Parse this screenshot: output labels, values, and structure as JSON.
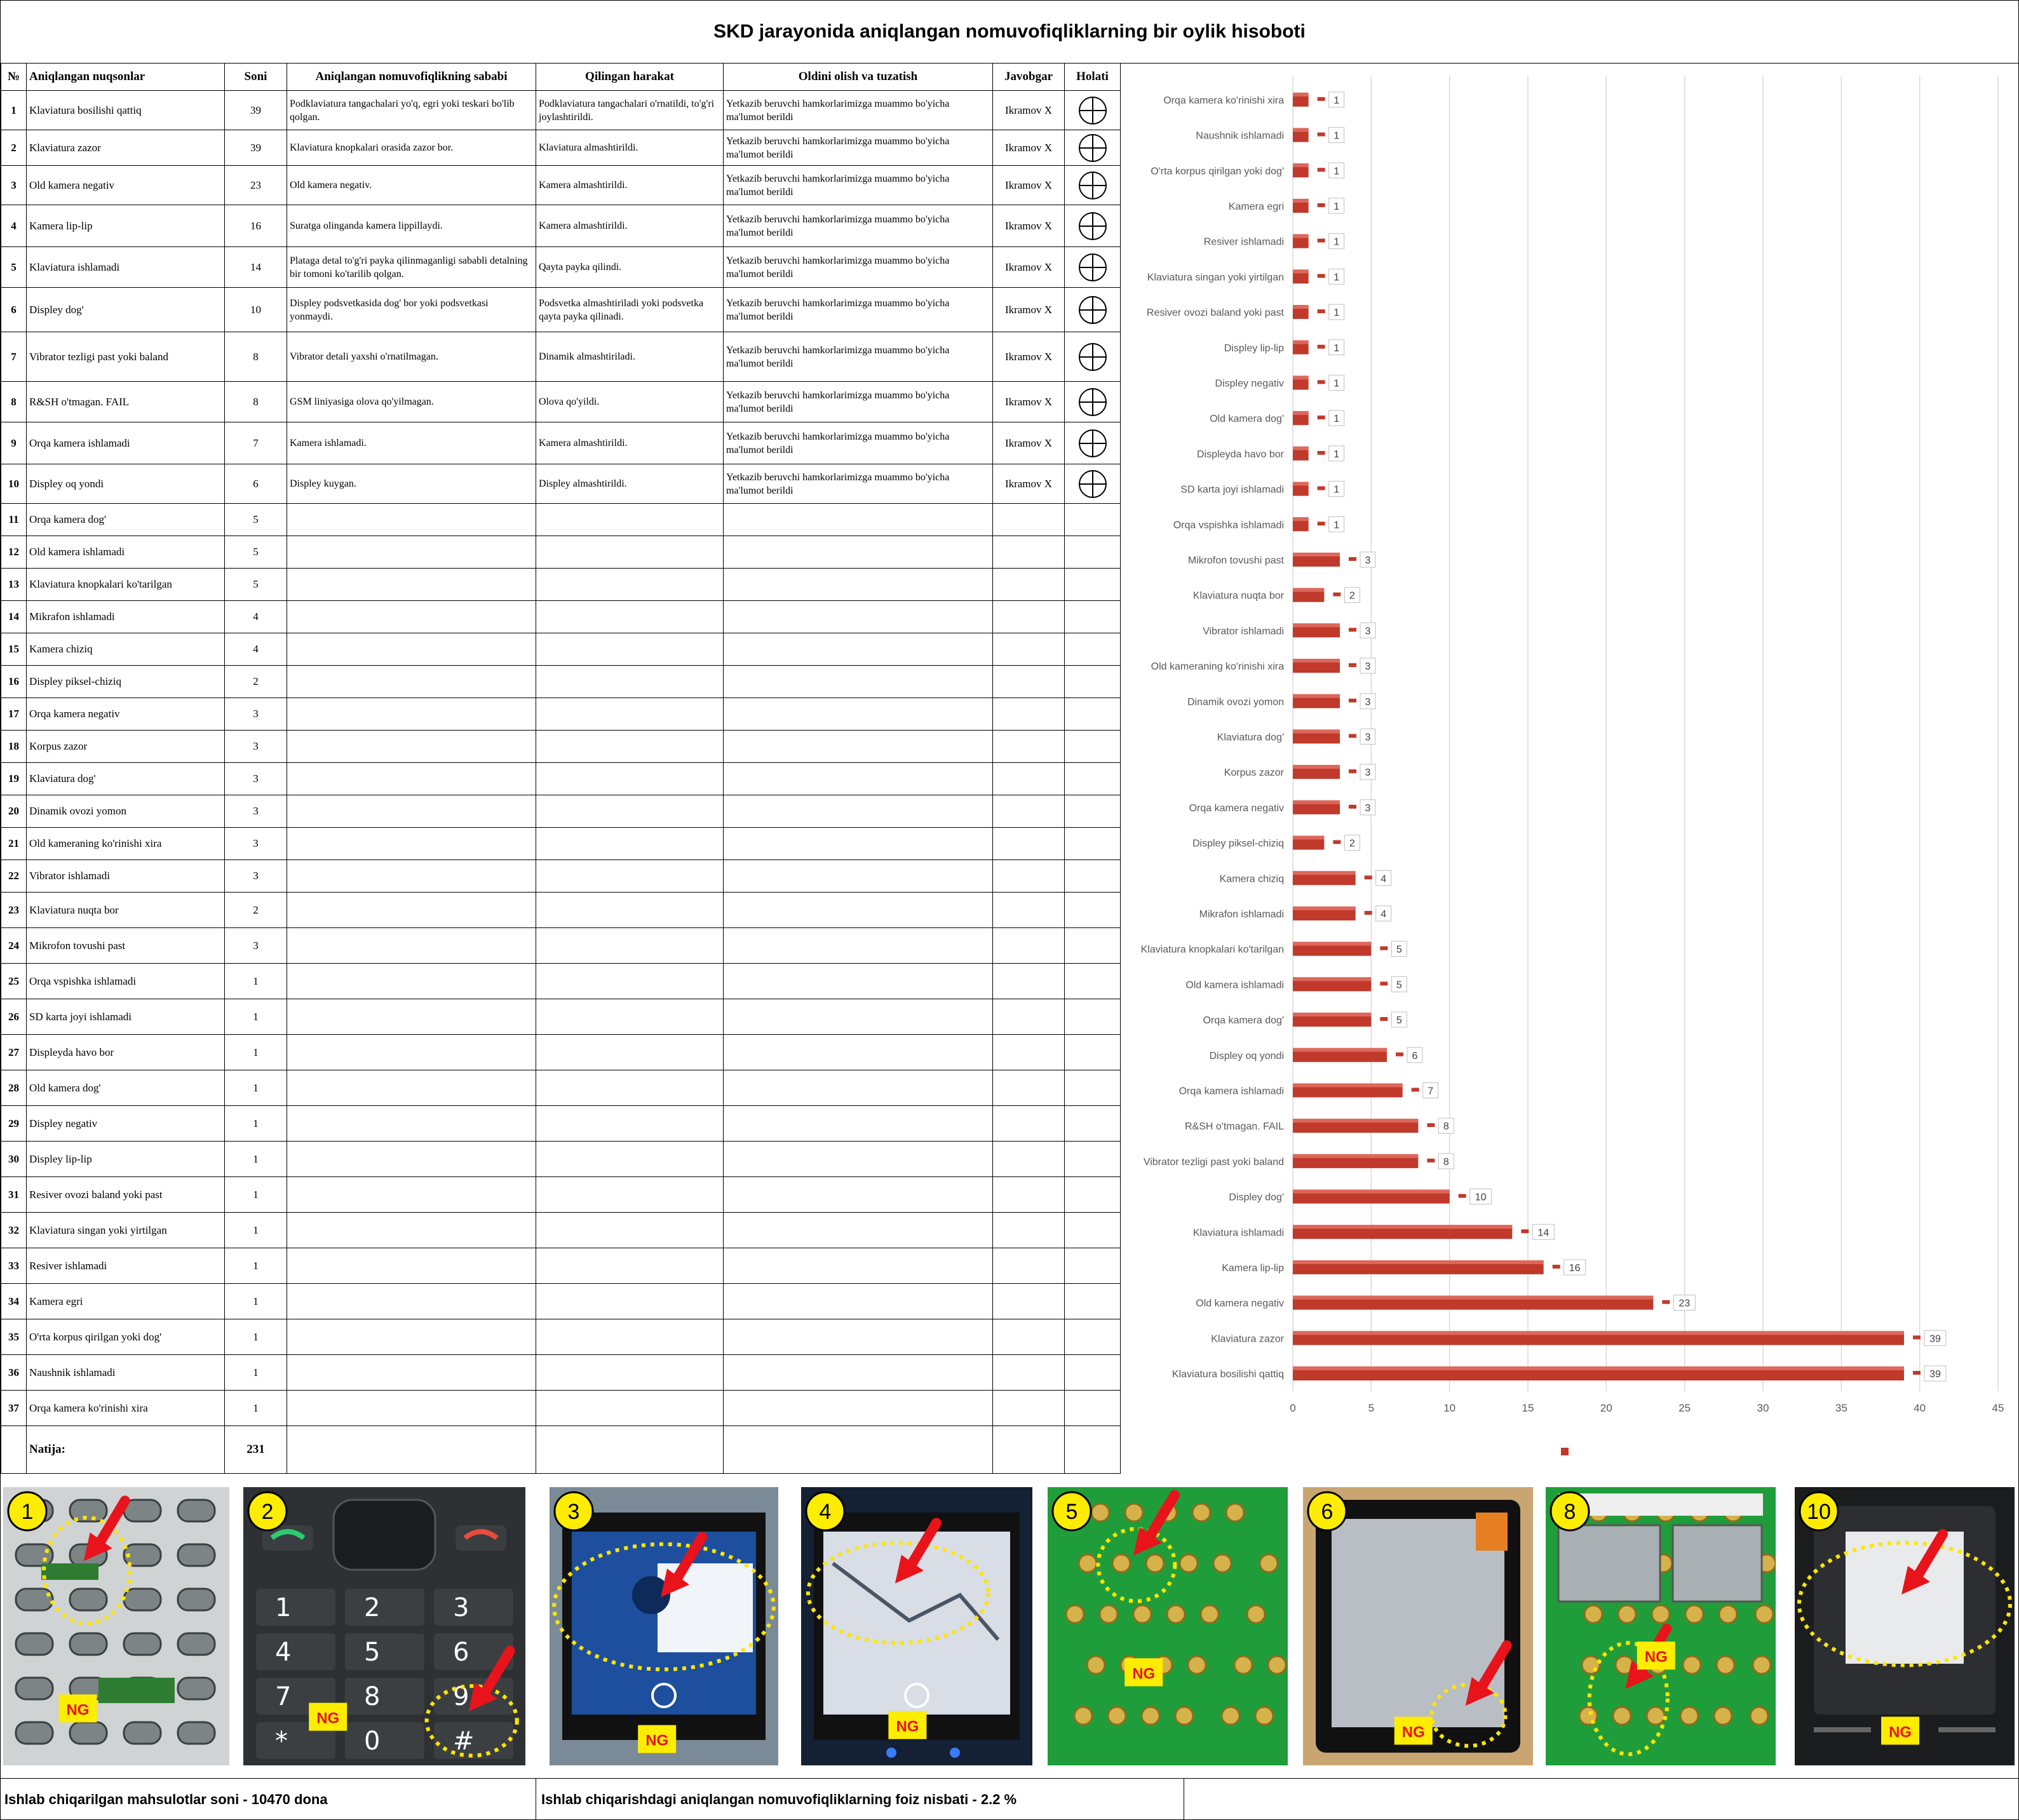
{
  "title": "SKD jarayonida aniqlangan nomuvofiqliklarning bir oylik hisoboti",
  "table": {
    "headers": {
      "num": "№",
      "defect": "Aniqlangan nuqsonlar",
      "count": "Soni",
      "cause": "Aniqlangan nomuvofiqlikning sababi",
      "action": "Qilingan harakat",
      "prevent": "Oldini olish va tuzatish",
      "resp": "Javobgar",
      "status": "Holati"
    },
    "rows": [
      {
        "n": "1",
        "defect": "Klaviatura bosilishi qattiq",
        "count": "39",
        "cause": "Podklaviatura tangachalari yo'q, egri yoki teskari bo'lib qolgan.",
        "action": "Podklaviatura tangachalari o'rnatildi, to'g'ri joylashtirildi.",
        "prevent": "Yetkazib beruvchi hamkorlarimizga muammo bo'yicha ma'lumot berildi",
        "resp": "Ikramov X",
        "status": "crosshair-icon"
      },
      {
        "n": "2",
        "defect": "Klaviatura zazor",
        "count": "39",
        "cause": "Klaviatura knopkalari orasida zazor bor.",
        "action": "Klaviatura almashtirildi.",
        "prevent": "Yetkazib beruvchi hamkorlarimizga muammo bo'yicha ma'lumot berildi",
        "resp": "Ikramov X",
        "status": "crosshair-icon"
      },
      {
        "n": "3",
        "defect": "Old kamera negativ",
        "count": "23",
        "cause": "Old kamera negativ.",
        "action": "Kamera almashtirildi.",
        "prevent": "Yetkazib beruvchi hamkorlarimizga muammo bo'yicha ma'lumot berildi",
        "resp": "Ikramov X",
        "status": "crosshair-icon"
      },
      {
        "n": "4",
        "defect": "Kamera lip-lip",
        "count": "16",
        "cause": "Suratga olinganda kamera lippillaydi.",
        "action": "Kamera almashtirildi.",
        "prevent": "Yetkazib beruvchi hamkorlarimizga muammo bo'yicha ma'lumot berildi",
        "resp": "Ikramov X",
        "status": "crosshair-icon"
      },
      {
        "n": "5",
        "defect": "Klaviatura ishlamadi",
        "count": "14",
        "cause": "Plataga detal to'g'ri payka qilinmaganligi sababli detalning bir tomoni ko'tarilib qolgan.",
        "action": "Qayta payka qilindi.",
        "prevent": "Yetkazib beruvchi hamkorlarimizga muammo bo'yicha ma'lumot berildi",
        "resp": "Ikramov X",
        "status": "crosshair-icon"
      },
      {
        "n": "6",
        "defect": "Displey dog'",
        "count": "10",
        "cause": "Displey podsvetkasida dog' bor yoki podsvetkasi yonmaydi.",
        "action": "Podsvetka almashtiriladi yoki podsvetka qayta payka qilinadi.",
        "prevent": "Yetkazib beruvchi hamkorlarimizga muammo bo'yicha ma'lumot berildi",
        "resp": "Ikramov X",
        "status": "crosshair-icon"
      },
      {
        "n": "7",
        "defect": "Vibrator tezligi past yoki baland",
        "count": "8",
        "cause": "Vibrator detali yaxshi o'rnatilmagan.",
        "action": "Dinamik almashtiriladi.",
        "prevent": "Yetkazib beruvchi hamkorlarimizga muammo bo'yicha ma'lumot berildi",
        "resp": "Ikramov X",
        "status": "crosshair-icon"
      },
      {
        "n": "8",
        "defect": "R&SH o'tmagan. FAIL",
        "count": "8",
        "cause": "GSM liniyasiga olova qo'yilmagan.",
        "action": "Olova qo'yildi.",
        "prevent": "Yetkazib beruvchi hamkorlarimizga muammo bo'yicha ma'lumot berildi",
        "resp": "Ikramov X",
        "status": "crosshair-icon"
      },
      {
        "n": "9",
        "defect": "Orqa kamera ishlamadi",
        "count": "7",
        "cause": "Kamera ishlamadi.",
        "action": "Kamera almashtirildi.",
        "prevent": "Yetkazib beruvchi hamkorlarimizga muammo bo'yicha ma'lumot berildi",
        "resp": "Ikramov X",
        "status": "crosshair-icon"
      },
      {
        "n": "10",
        "defect": "Displey oq yondi",
        "count": "6",
        "cause": "Displey kuygan.",
        "action": "Displey almashtirildi.",
        "prevent": "Yetkazib beruvchi hamkorlarimizga muammo bo'yicha ma'lumot berildi",
        "resp": "Ikramov X",
        "status": "crosshair-icon"
      },
      {
        "n": "11",
        "defect": "Orqa kamera dog'",
        "count": "5"
      },
      {
        "n": "12",
        "defect": "Old kamera ishlamadi",
        "count": "5"
      },
      {
        "n": "13",
        "defect": "Klaviatura knopkalari ko'tarilgan",
        "count": "5"
      },
      {
        "n": "14",
        "defect": "Mikrafon ishlamadi",
        "count": "4"
      },
      {
        "n": "15",
        "defect": "Kamera chiziq",
        "count": "4"
      },
      {
        "n": "16",
        "defect": "Displey piksel-chiziq",
        "count": "2"
      },
      {
        "n": "17",
        "defect": "Orqa kamera negativ",
        "count": "3"
      },
      {
        "n": "18",
        "defect": "Korpus zazor",
        "count": "3"
      },
      {
        "n": "19",
        "defect": "Klaviatura dog'",
        "count": "3"
      },
      {
        "n": "20",
        "defect": "Dinamik ovozi yomon",
        "count": "3"
      },
      {
        "n": "21",
        "defect": "Old kameraning ko'rinishi xira",
        "count": "3"
      },
      {
        "n": "22",
        "defect": "Vibrator ishlamadi",
        "count": "3"
      },
      {
        "n": "23",
        "defect": "Klaviatura nuqta bor",
        "count": "2"
      },
      {
        "n": "24",
        "defect": "Mikrofon tovushi past",
        "count": "3"
      },
      {
        "n": "25",
        "defect": "Orqa vspishka ishlamadi",
        "count": "1"
      },
      {
        "n": "26",
        "defect": "SD karta joyi ishlamadi",
        "count": "1"
      },
      {
        "n": "27",
        "defect": "Displeyda havo bor",
        "count": "1"
      },
      {
        "n": "28",
        "defect": "Old kamera dog'",
        "count": "1"
      },
      {
        "n": "29",
        "defect": "Displey negativ",
        "count": "1"
      },
      {
        "n": "30",
        "defect": "Displey lip-lip",
        "count": "1"
      },
      {
        "n": "31",
        "defect": "Resiver ovozi baland yoki past",
        "count": "1"
      },
      {
        "n": "32",
        "defect": "Klaviatura singan yoki yirtilgan",
        "count": "1"
      },
      {
        "n": "33",
        "defect": "Resiver ishlamadi",
        "count": "1"
      },
      {
        "n": "34",
        "defect": "Kamera egri",
        "count": "1"
      },
      {
        "n": "35",
        "defect": "O'rta korpus qirilgan yoki dog'",
        "count": "1"
      },
      {
        "n": "36",
        "defect": "Naushnik ishlamadi",
        "count": "1"
      },
      {
        "n": "37",
        "defect": "Orqa kamera ko'rinishi xira",
        "count": "1"
      }
    ],
    "total_label": "Natija:",
    "total_value": "231"
  },
  "chart_data": {
    "type": "bar",
    "orientation": "horizontal",
    "categories": [
      "Orqa kamera ko'rinishi xira",
      "Naushnik ishlamadi",
      "O'rta korpus qirilgan yoki dog'",
      "Kamera egri",
      "Resiver ishlamadi",
      "Klaviatura singan yoki yirtilgan",
      "Resiver ovozi baland yoki past",
      "Displey lip-lip",
      "Displey negativ",
      "Old kamera dog'",
      "Displeyda havo bor",
      "SD karta joyi ishlamadi",
      "Orqa vspishka ishlamadi",
      "Mikrofon tovushi past",
      "Klaviatura nuqta bor",
      "Vibrator ishlamadi",
      "Old kameraning ko'rinishi xira",
      "Dinamik ovozi yomon",
      "Klaviatura dog'",
      "Korpus zazor",
      "Orqa kamera negativ",
      "Displey piksel-chiziq",
      "Kamera chiziq",
      "Mikrafon ishlamadi",
      "Klaviatura knopkalari ko'tarilgan",
      "Old kamera ishlamadi",
      "Orqa kamera dog'",
      "Displey oq yondi",
      "Orqa kamera ishlamadi",
      "R&SH o'tmagan. FAIL",
      "Vibrator tezligi past yoki baland",
      "Displey dog'",
      "Klaviatura ishlamadi",
      "Kamera lip-lip",
      "Old kamera negativ",
      "Klaviatura zazor",
      "Klaviatura bosilishi qattiq"
    ],
    "values": [
      1,
      1,
      1,
      1,
      1,
      1,
      1,
      1,
      1,
      1,
      1,
      1,
      1,
      3,
      2,
      3,
      3,
      3,
      3,
      3,
      3,
      2,
      4,
      4,
      5,
      5,
      5,
      6,
      7,
      8,
      8,
      10,
      14,
      16,
      23,
      39,
      39
    ],
    "xlim": [
      0,
      45
    ],
    "xticks": [
      0,
      5,
      10,
      15,
      20,
      25,
      30,
      35,
      40,
      45
    ],
    "grid": true,
    "bar_color": "#c0392b",
    "data_labels": true
  },
  "photos": [
    {
      "label": "1",
      "tag": "NG",
      "subject": "keypad-membrane"
    },
    {
      "label": "2",
      "tag": "NG",
      "subject": "phone-keypad"
    },
    {
      "label": "3",
      "tag": "NG",
      "subject": "camera-screen"
    },
    {
      "label": "4",
      "tag": "NG",
      "subject": "camera-screen-flicker"
    },
    {
      "label": "5",
      "tag": "NG",
      "subject": "pcb-keypad"
    },
    {
      "label": "6",
      "tag": "NG",
      "subject": "display-spot"
    },
    {
      "label": "8",
      "tag": "NG",
      "subject": "pcb-gsm"
    },
    {
      "label": "10",
      "tag": "NG",
      "subject": "display-white"
    }
  ],
  "footer": {
    "produced": "Ishlab chiqarilgan mahsulotlar soni  -  10470 dona",
    "ratio": "Ishlab chiqarishdagi aniqlangan nomuvofiqliklarning foiz nisbati  -  2.2 %"
  },
  "colors": {
    "bar": "#c0392b",
    "badge": "#ffed00",
    "ng_tag": "#ffed00",
    "dotted_circle": "#ffe600",
    "arrow": "#e8131b",
    "grid": "#d9d9d9"
  }
}
